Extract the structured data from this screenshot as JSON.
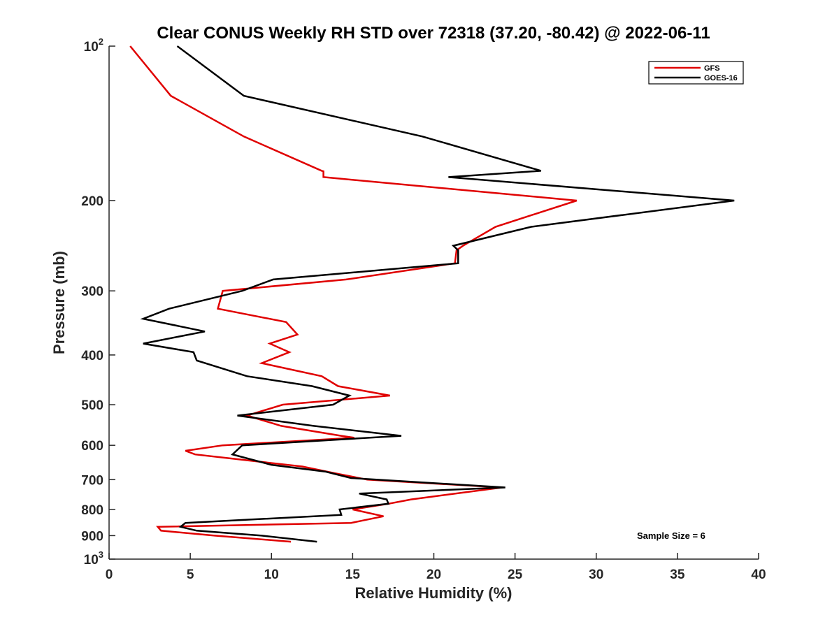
{
  "chart_data": {
    "type": "line",
    "title": "Clear CONUS Weekly RH STD over 72318 (37.20, -80.42) @ 2022-06-11",
    "xlabel": "Relative Humidity (%)",
    "ylabel": "Pressure (mb)",
    "xlim": [
      0,
      40
    ],
    "ylim": [
      1000,
      100
    ],
    "yscale": "log",
    "y_reversed": true,
    "grid": false,
    "legend_position": "top-right",
    "x_ticks": [
      0,
      5,
      10,
      15,
      20,
      25,
      30,
      35,
      40
    ],
    "x_tick_labels": [
      "0",
      "5",
      "10",
      "15",
      "20",
      "25",
      "30",
      "35",
      "40"
    ],
    "y_ticks": [
      100,
      200,
      300,
      400,
      500,
      600,
      700,
      800,
      900,
      1000
    ],
    "y_tick_labels": [
      {
        "base": "10",
        "exp": "2"
      },
      {
        "base": "200",
        "exp": ""
      },
      {
        "base": "300",
        "exp": ""
      },
      {
        "base": "400",
        "exp": ""
      },
      {
        "base": "500",
        "exp": ""
      },
      {
        "base": "600",
        "exp": ""
      },
      {
        "base": "700",
        "exp": ""
      },
      {
        "base": "800",
        "exp": ""
      },
      {
        "base": "900",
        "exp": ""
      },
      {
        "base": "10",
        "exp": "3"
      }
    ],
    "annotation": "Sample Size = 6",
    "series": [
      {
        "name": "GFS",
        "color": "#e00000",
        "points": [
          [
            1.3,
            100
          ],
          [
            3.8,
            125
          ],
          [
            8.3,
            150
          ],
          [
            13.1,
            175
          ],
          [
            13.2,
            175.4
          ],
          [
            13.2,
            180
          ],
          [
            28.8,
            200
          ],
          [
            23.8,
            225
          ],
          [
            21.8,
            245
          ],
          [
            21.4,
            250
          ],
          [
            21.3,
            265
          ],
          [
            14.6,
            285
          ],
          [
            7.0,
            300
          ],
          [
            6.7,
            325
          ],
          [
            10.9,
            345
          ],
          [
            11.6,
            365
          ],
          [
            9.9,
            380
          ],
          [
            11.1,
            395
          ],
          [
            9.4,
            415
          ],
          [
            13.1,
            440
          ],
          [
            14.1,
            460
          ],
          [
            17.3,
            480
          ],
          [
            10.7,
            500
          ],
          [
            8.5,
            525
          ],
          [
            10.6,
            550
          ],
          [
            14.3,
            575
          ],
          [
            15.1,
            580
          ],
          [
            7.0,
            600
          ],
          [
            4.7,
            615
          ],
          [
            5.3,
            625
          ],
          [
            11.9,
            660
          ],
          [
            13.9,
            680
          ],
          [
            15.9,
            700
          ],
          [
            24.2,
            725
          ],
          [
            18.6,
            765
          ],
          [
            17.2,
            780
          ],
          [
            15.0,
            800
          ],
          [
            16.9,
            825
          ],
          [
            14.9,
            850
          ],
          [
            3.0,
            865
          ],
          [
            3.2,
            880
          ],
          [
            6.5,
            900
          ],
          [
            11.2,
            925
          ]
        ]
      },
      {
        "name": "GOES-16",
        "color": "#000000",
        "points": [
          [
            4.2,
            100
          ],
          [
            8.3,
            125
          ],
          [
            19.3,
            150
          ],
          [
            26.6,
            175
          ],
          [
            20.9,
            180
          ],
          [
            38.5,
            200
          ],
          [
            26.0,
            225
          ],
          [
            21.2,
            245
          ],
          [
            21.5,
            250
          ],
          [
            21.5,
            265
          ],
          [
            10.1,
            285
          ],
          [
            8.2,
            300
          ],
          [
            3.7,
            325
          ],
          [
            2.1,
            340
          ],
          [
            5.9,
            360
          ],
          [
            2.1,
            380
          ],
          [
            5.2,
            395
          ],
          [
            5.4,
            410
          ],
          [
            8.5,
            440
          ],
          [
            12.5,
            460
          ],
          [
            14.8,
            480
          ],
          [
            13.8,
            500
          ],
          [
            7.9,
            525
          ],
          [
            12.6,
            550
          ],
          [
            18.0,
            575
          ],
          [
            8.2,
            600
          ],
          [
            7.6,
            625
          ],
          [
            10.0,
            655
          ],
          [
            13.3,
            675
          ],
          [
            14.9,
            695
          ],
          [
            24.4,
            725
          ],
          [
            15.4,
            745
          ],
          [
            17.1,
            765
          ],
          [
            17.2,
            780
          ],
          [
            14.2,
            800
          ],
          [
            14.3,
            820
          ],
          [
            4.7,
            850
          ],
          [
            4.4,
            865
          ],
          [
            5.4,
            880
          ],
          [
            9.4,
            900
          ],
          [
            12.8,
            925
          ]
        ]
      }
    ]
  }
}
